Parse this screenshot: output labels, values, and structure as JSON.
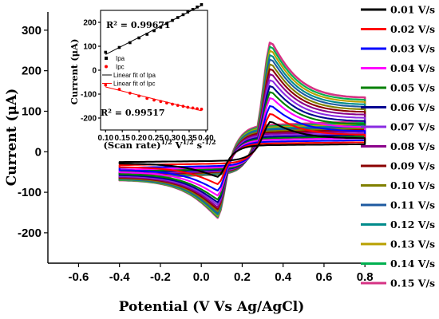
{
  "chart_data": [
    {
      "type": "line",
      "title": "",
      "xlabel": "Potential (V Vs Ag/AgCl)",
      "ylabel": "Current (μA)",
      "xlim": [
        -0.75,
        0.85
      ],
      "ylim": [
        -275,
        345
      ],
      "xticks": [
        -0.6,
        -0.4,
        -0.2,
        0.0,
        0.2,
        0.4,
        0.6,
        0.8
      ],
      "xtick_labels": [
        "-0.6",
        "-0.4",
        "-0.2",
        "0.0",
        "0.2",
        "0.4",
        "0.6",
        "0.8"
      ],
      "yticks": [
        -200,
        -100,
        0,
        100,
        200,
        300
      ],
      "ytick_labels": [
        "-200",
        "-100",
        "0",
        "100",
        "200",
        "300"
      ],
      "legend_position": "right, outside",
      "series": [
        {
          "name": "0.01 V/s",
          "color": "#000000",
          "scan_rate": 0.01,
          "ipa": 75,
          "ipc": -62
        },
        {
          "name": "0.02 V/s",
          "color": "#ff0000",
          "scan_rate": 0.02,
          "ipa": 95,
          "ipc": -80
        },
        {
          "name": "0.03 V/s",
          "color": "#0000ff",
          "scan_rate": 0.03,
          "ipa": 115,
          "ipc": -96
        },
        {
          "name": "0.04 V/s",
          "color": "#ff00ff",
          "scan_rate": 0.04,
          "ipa": 135,
          "ipc": -108
        },
        {
          "name": "0.05 V/s",
          "color": "#008000",
          "scan_rate": 0.05,
          "ipa": 150,
          "ipc": -118
        },
        {
          "name": "0.06 V/s",
          "color": "#000090",
          "scan_rate": 0.06,
          "ipa": 165,
          "ipc": -125
        },
        {
          "name": "0.07 V/s",
          "color": "#8a2be2",
          "scan_rate": 0.07,
          "ipa": 180,
          "ipc": -131
        },
        {
          "name": "0.08 V/s",
          "color": "#8b008b",
          "scan_rate": 0.08,
          "ipa": 195,
          "ipc": -137
        },
        {
          "name": "0.09 V/s",
          "color": "#8b0000",
          "scan_rate": 0.09,
          "ipa": 208,
          "ipc": -142
        },
        {
          "name": "0.10 V/s",
          "color": "#808000",
          "scan_rate": 0.1,
          "ipa": 220,
          "ipc": -147
        },
        {
          "name": "0.11 V/s",
          "color": "#1e5aa0",
          "scan_rate": 0.11,
          "ipa": 232,
          "ipc": -151
        },
        {
          "name": "0.12 V/s",
          "color": "#008b8b",
          "scan_rate": 0.12,
          "ipa": 243,
          "ipc": -155
        },
        {
          "name": "0.13 V/s",
          "color": "#b8a000",
          "scan_rate": 0.13,
          "ipa": 254,
          "ipc": -158
        },
        {
          "name": "0.14 V/s",
          "color": "#00b050",
          "scan_rate": 0.14,
          "ipa": 264,
          "ipc": -161
        },
        {
          "name": "0.15 V/s",
          "color": "#d63384",
          "scan_rate": 0.15,
          "ipa": 274,
          "ipc": -163
        }
      ],
      "peak_potentials": {
        "anodic": 0.34,
        "cathodic": 0.08
      }
    },
    {
      "type": "scatter",
      "title": "inset",
      "xlabel": "(Scan rate)1/2 V1/2 s-1/2",
      "xlabel_parts": {
        "base": "(Scan rate)",
        "sup1": "1/2",
        "v": " V",
        "sup2": "1/2",
        "s": " s",
        "sup3": "-1/2"
      },
      "ylabel": "Current (μA)",
      "xlim": [
        0.085,
        0.405
      ],
      "ylim": [
        -250,
        250
      ],
      "xticks": [
        0.1,
        0.15,
        0.2,
        0.25,
        0.3,
        0.35,
        0.4
      ],
      "xtick_labels": [
        "0.10",
        "0.15",
        "0.20",
        "0.25",
        "0.30",
        "0.35",
        "0.40"
      ],
      "yticks": [
        -200,
        -100,
        0,
        100,
        200
      ],
      "ytick_labels": [
        "-200",
        "-100",
        "0",
        "100",
        "200"
      ],
      "legend": [
        "Ipa",
        "Ipc",
        "Linear fit of Ipa",
        "Linear fit of Ipc"
      ],
      "annotations": {
        "r2_top": "R² = 0.99671",
        "r2_bottom": "R² = 0.99517"
      },
      "series": [
        {
          "name": "Ipa",
          "color": "#000000",
          "x": [
            0.1,
            0.141,
            0.173,
            0.2,
            0.224,
            0.245,
            0.265,
            0.283,
            0.3,
            0.316,
            0.332,
            0.346,
            0.361,
            0.374,
            0.387
          ],
          "y": [
            75,
            95,
            115,
            135,
            150,
            165,
            180,
            195,
            208,
            220,
            232,
            243,
            254,
            264,
            274
          ]
        },
        {
          "name": "Ipc",
          "color": "#ff0000",
          "x": [
            0.1,
            0.141,
            0.173,
            0.2,
            0.224,
            0.245,
            0.265,
            0.283,
            0.3,
            0.316,
            0.332,
            0.346,
            0.361,
            0.374,
            0.387
          ],
          "y": [
            -62,
            -80,
            -96,
            -108,
            -118,
            -125,
            -131,
            -137,
            -142,
            -147,
            -151,
            -155,
            -158,
            -161,
            -163
          ]
        },
        {
          "name": "Linear fit of Ipa",
          "color": "#000000"
        },
        {
          "name": "Linear fit of Ipc",
          "color": "#ff0000"
        }
      ]
    }
  ]
}
